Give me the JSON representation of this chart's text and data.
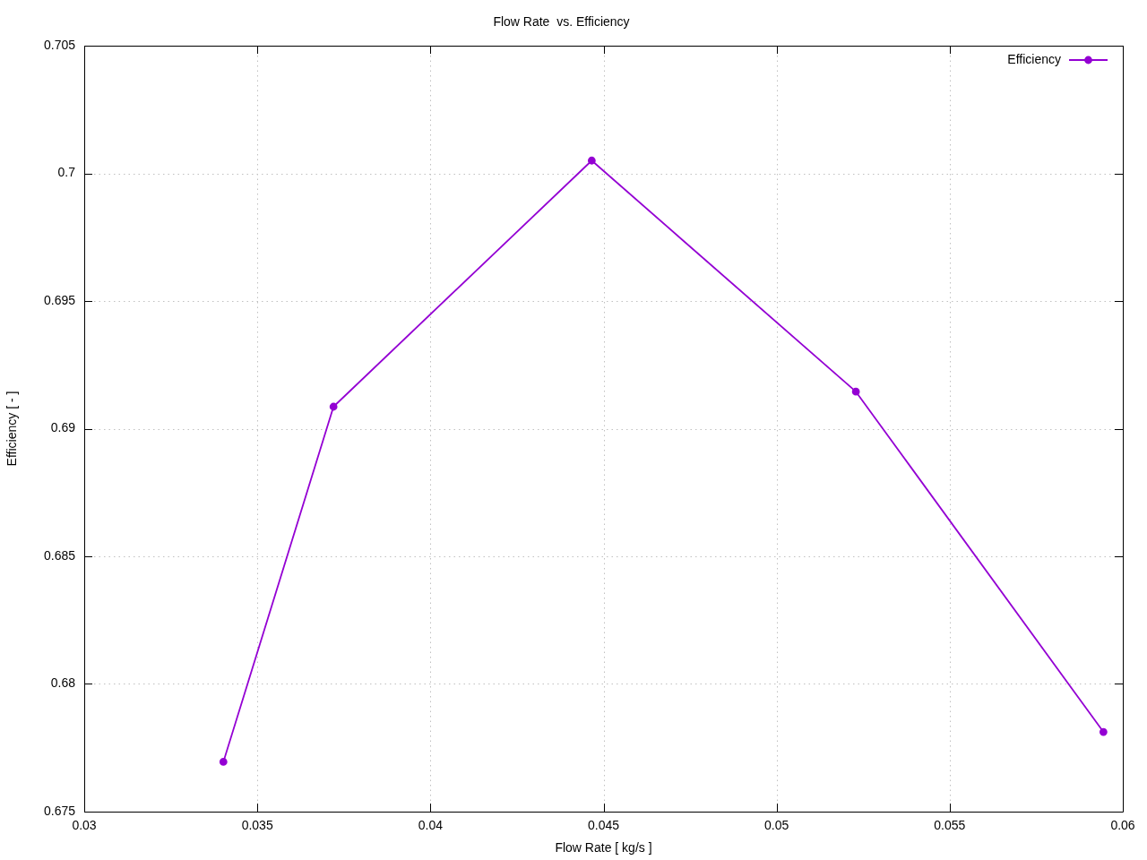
{
  "chart_data": {
    "type": "line",
    "title": "Flow Rate  vs. Efficiency",
    "xlabel": "Flow Rate [ kg/s ]",
    "ylabel": "Efficiency [ - ]",
    "x": [
      0.03402,
      0.0372,
      0.04466,
      0.05229,
      0.05944
    ],
    "series": [
      {
        "name": "Efficiency",
        "color": "#9400d3",
        "values": [
          0.67695,
          0.69086,
          0.7005,
          0.69145,
          0.67812
        ]
      }
    ],
    "xlim": [
      0.03,
      0.06
    ],
    "xticks": [
      0.03,
      0.035,
      0.04,
      0.045,
      0.05,
      0.055,
      0.06
    ],
    "ylim": [
      0.675,
      0.705
    ],
    "yticks": [
      0.675,
      0.68,
      0.685,
      0.69,
      0.695,
      0.7,
      0.705
    ],
    "grid": true,
    "legend": "top right",
    "marker": "circle",
    "line_style": "solid"
  }
}
